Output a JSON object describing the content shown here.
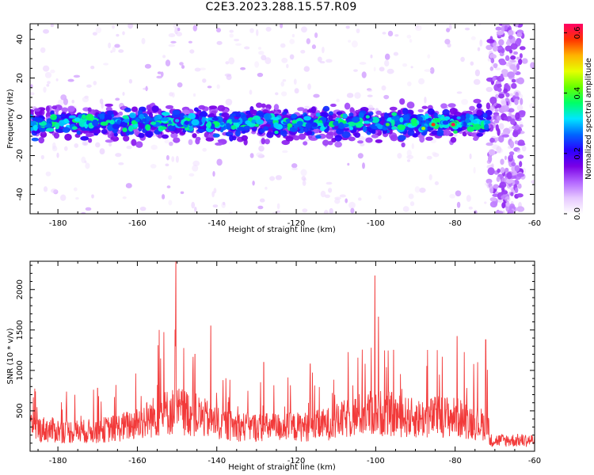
{
  "title": "C2E3.2023.288.15.57.R09",
  "colors": {
    "snr_line": "#f23a3a",
    "axis": "#000000",
    "colormap": [
      "#ffffff",
      "#e6c8ff",
      "#b366ff",
      "#7a00e6",
      "#2a00ff",
      "#0066ff",
      "#00e6ff",
      "#00ff66",
      "#66ff00",
      "#e6ff00",
      "#ffb300",
      "#ff3300",
      "#ff0066"
    ]
  },
  "chart_data": [
    {
      "type": "heatmap",
      "title": "C2E3.2023.288.15.57.R09",
      "xlabel": "Height of straight line (km)",
      "ylabel": "Frequency (Hz)",
      "xlim": [
        -187,
        -60
      ],
      "ylim": [
        -50,
        48
      ],
      "xticks": [
        -180,
        -160,
        -140,
        -120,
        -100,
        -80,
        -60
      ],
      "yticks": [
        -40,
        -20,
        0,
        20,
        40
      ],
      "colorbar": {
        "label": "Normalized spectral amplitude",
        "range": [
          0.0,
          0.63
        ],
        "ticks": [
          "0.0",
          "0.2",
          "0.4",
          "0.6"
        ]
      },
      "band_center_hz": -3,
      "band_halfwidth_hz": 11,
      "cutoff_km": -71.5,
      "hotspots": [
        {
          "x": -80.5,
          "y": -4,
          "value": 0.62
        },
        {
          "x": -85.5,
          "y": -4,
          "value": 0.58
        },
        {
          "x": -88,
          "y": -6,
          "value": 0.45
        },
        {
          "x": -97,
          "y": -4,
          "value": 0.4
        },
        {
          "x": -102,
          "y": 0,
          "value": 0.35
        },
        {
          "x": -125,
          "y": -8,
          "value": 0.35
        },
        {
          "x": -150,
          "y": -2,
          "value": 0.3
        }
      ]
    },
    {
      "type": "line",
      "xlabel": "Height of straight line (km)",
      "ylabel": "SNR (10 * v/v)",
      "xlim": [
        -187,
        -60
      ],
      "ylim": [
        0,
        2350
      ],
      "xticks": [
        -180,
        -160,
        -140,
        -120,
        -100,
        -80,
        -60
      ],
      "yticks": [
        500,
        1000,
        1500,
        2000
      ],
      "noise_floor": 200,
      "cutoff_km": -71.5,
      "peaks": [
        {
          "x": -150.3,
          "y": 2350
        },
        {
          "x": -100.2,
          "y": 2170
        },
        {
          "x": -99.3,
          "y": 1660
        },
        {
          "x": -141.5,
          "y": 1550
        },
        {
          "x": -154.5,
          "y": 1500
        },
        {
          "x": -79.5,
          "y": 1420
        },
        {
          "x": -72.3,
          "y": 1380
        },
        {
          "x": -95.5,
          "y": 1250
        },
        {
          "x": -84.5,
          "y": 1250
        },
        {
          "x": -145.5,
          "y": 1200
        },
        {
          "x": -128.2,
          "y": 1100
        },
        {
          "x": -116.5,
          "y": 1080
        },
        {
          "x": -170,
          "y": 780
        }
      ]
    }
  ]
}
